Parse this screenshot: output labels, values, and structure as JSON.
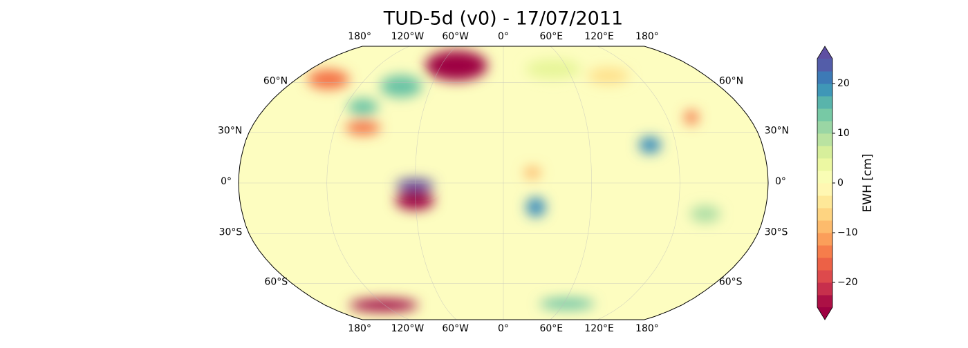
{
  "title": "TUD-5d (v0) - 17/07/2011",
  "map": {
    "lon_labels": [
      "180°",
      "120°W",
      "60°W",
      "0°",
      "60°E",
      "120°E",
      "180°"
    ],
    "lat_labels": [
      "60°N",
      "30°N",
      "0°",
      "30°S",
      "60°S"
    ]
  },
  "colorbar": {
    "label": "EWH [cm]",
    "lim": [
      -25,
      25
    ],
    "ticks": [
      {
        "value": -20,
        "label": "−20"
      },
      {
        "value": -10,
        "label": "−10"
      },
      0,
      10,
      20
    ],
    "colors": [
      "#9e0142",
      "#d53e4f",
      "#f46d43",
      "#fdae61",
      "#fee08b",
      "#ffffbf",
      "#e6f598",
      "#abdda4",
      "#66c2a5",
      "#3288bd",
      "#5e4fa2"
    ]
  }
}
